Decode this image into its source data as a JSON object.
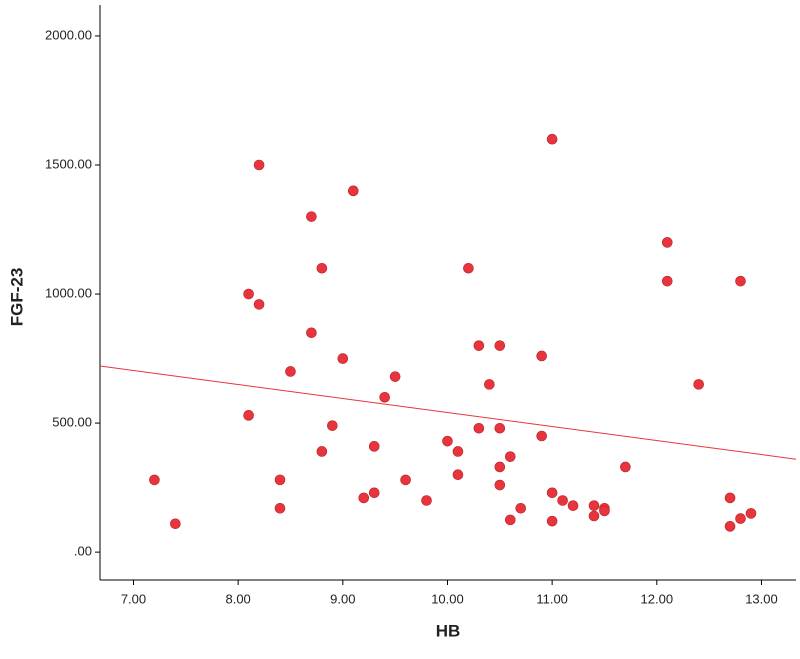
{
  "chart_data": {
    "type": "scatter",
    "xlabel": "HB",
    "ylabel": "FGF-23",
    "x": [
      7.2,
      7.4,
      8.1,
      8.1,
      8.2,
      8.2,
      8.4,
      8.4,
      8.5,
      8.7,
      8.7,
      8.8,
      8.8,
      8.9,
      9.0,
      9.1,
      9.2,
      9.3,
      9.3,
      9.4,
      9.5,
      9.6,
      9.8,
      10.0,
      10.1,
      10.1,
      10.2,
      10.3,
      10.3,
      10.4,
      10.5,
      10.5,
      10.5,
      10.5,
      10.6,
      10.6,
      10.7,
      10.9,
      10.9,
      11.0,
      11.0,
      11.0,
      11.1,
      11.2,
      11.4,
      11.4,
      11.5,
      11.5,
      11.7,
      12.1,
      12.1,
      12.4,
      12.7,
      12.7,
      12.8,
      12.8,
      12.9
    ],
    "values": [
      280,
      110,
      1000,
      530,
      1500,
      960,
      280,
      170,
      700,
      1300,
      850,
      1100,
      390,
      490,
      750,
      1400,
      210,
      410,
      230,
      600,
      680,
      280,
      200,
      430,
      390,
      300,
      1100,
      800,
      480,
      650,
      800,
      480,
      330,
      260,
      370,
      125,
      170,
      760,
      450,
      1600,
      230,
      120,
      200,
      180,
      180,
      140,
      170,
      160,
      330,
      1200,
      1050,
      650,
      210,
      100,
      1050,
      130,
      150
    ],
    "color": "#e8343c",
    "fit_line": {
      "x": [
        6.68,
        13.33
      ],
      "y": [
        721,
        360
      ],
      "color": "#e8343c"
    },
    "xlim": [
      6.68,
      13.33
    ],
    "xticks": [
      {
        "value": 7,
        "label": "7.00"
      },
      {
        "value": 8,
        "label": "8.00"
      },
      {
        "value": 9,
        "label": "9.00"
      },
      {
        "value": 10,
        "label": "10.00"
      },
      {
        "value": 11,
        "label": "11.00"
      },
      {
        "value": 12,
        "label": "12.00"
      },
      {
        "value": 13,
        "label": "13.00"
      }
    ],
    "ylim": [
      -108,
      2120
    ],
    "yticks": [
      {
        "value": 0,
        "label": ".00"
      },
      {
        "value": 500,
        "label": "500.00"
      },
      {
        "value": 1000,
        "label": "1000.00"
      },
      {
        "value": 1500,
        "label": "1500.00"
      },
      {
        "value": 2000,
        "label": "2000.00"
      }
    ]
  }
}
